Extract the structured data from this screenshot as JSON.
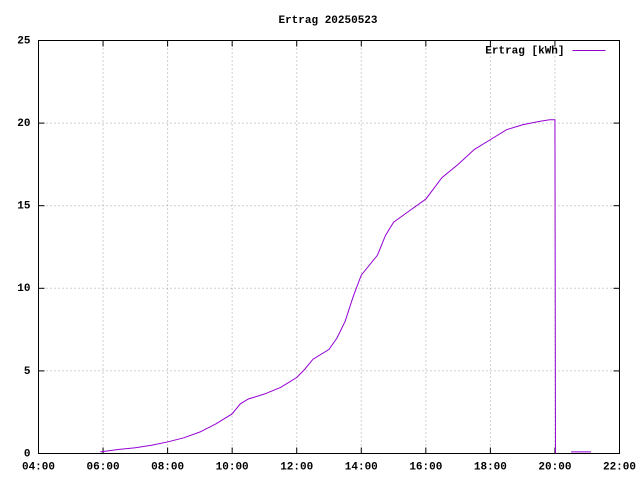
{
  "chart_data": {
    "type": "line",
    "title": "Ertrag 20250523",
    "x": [
      "05:55",
      "06:30",
      "07:00",
      "07:30",
      "08:00",
      "08:30",
      "09:00",
      "09:30",
      "10:00",
      "10:15",
      "10:30",
      "11:00",
      "11:30",
      "12:00",
      "12:15",
      "12:30",
      "13:00",
      "13:15",
      "13:30",
      "13:45",
      "14:00",
      "14:30",
      "14:45",
      "15:00",
      "15:30",
      "16:00",
      "16:30",
      "17:00",
      "17:30",
      "18:00",
      "18:30",
      "19:00",
      "19:30",
      "19:50",
      "20:00",
      "20:01",
      "20:15",
      "20:30",
      "21:07"
    ],
    "series": [
      {
        "name": "Ertrag [kWh]",
        "color": "#9400d3",
        "values": [
          0.1,
          0.25,
          0.35,
          0.5,
          0.7,
          0.95,
          1.3,
          1.8,
          2.4,
          3.0,
          3.3,
          3.6,
          4.0,
          4.6,
          5.1,
          5.7,
          6.3,
          7.0,
          8.0,
          9.5,
          10.8,
          12.0,
          13.2,
          14.0,
          14.7,
          15.4,
          16.7,
          17.5,
          18.4,
          19.0,
          19.6,
          19.9,
          20.1,
          20.2,
          20.2,
          0,
          null,
          0.1,
          0.1
        ]
      }
    ],
    "xlim": [
      "04:00",
      "22:00"
    ],
    "xticks": [
      "04:00",
      "06:00",
      "08:00",
      "10:00",
      "12:00",
      "14:00",
      "16:00",
      "18:00",
      "20:00",
      "22:00"
    ],
    "ylim": [
      0,
      25
    ],
    "yticks": [
      0,
      5,
      10,
      15,
      20,
      25
    ],
    "grid": true,
    "legend": "top-right"
  }
}
